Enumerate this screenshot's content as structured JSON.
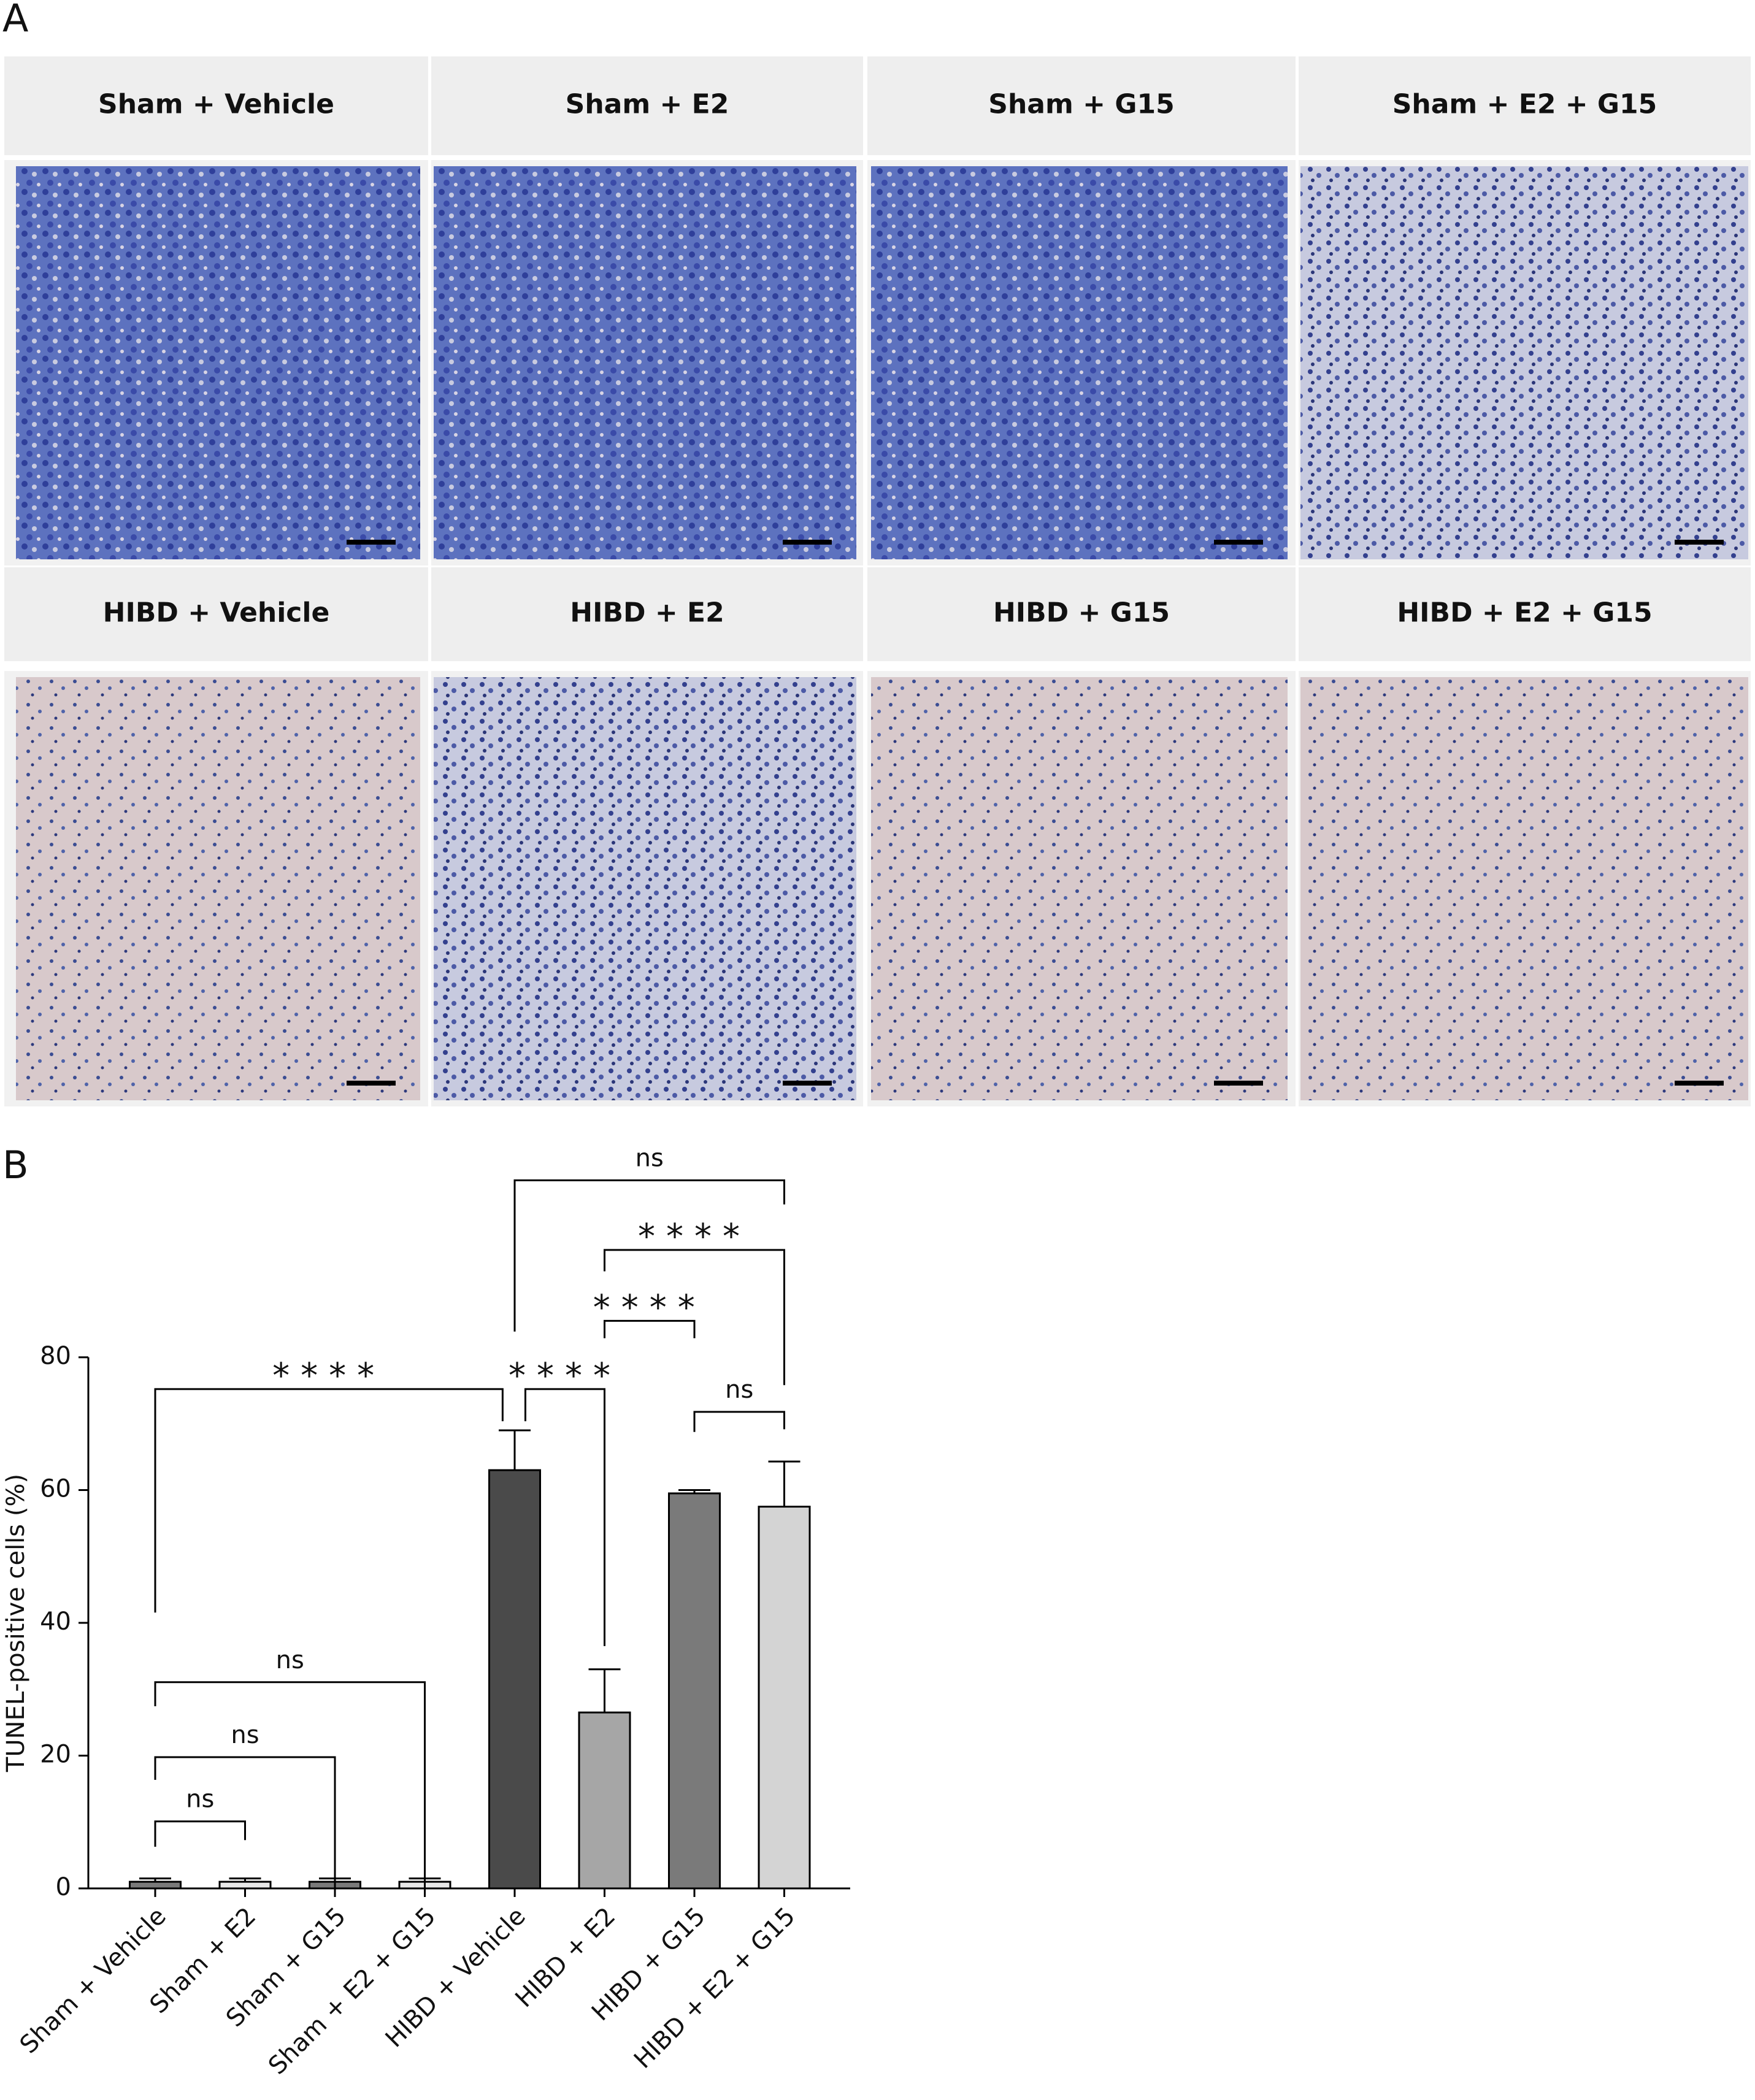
{
  "panel_a": {
    "label": "A",
    "titles": [
      "Sham + Vehicle",
      "Sham + E2",
      "Sham + G15",
      "Sham + E2 + G15",
      "HIBD + Vehicle",
      "HIBD + E2",
      "HIBD + G15",
      "HIBD + E2 + G15"
    ]
  },
  "chart_data": {
    "type": "bar",
    "label": "B",
    "ylabel": "TUNEL-positive cells (%)",
    "categories": [
      "Sham + Vehicle",
      "Sham + E2",
      "Sham + G15",
      "Sham + E2 + G15",
      "HIBD + Vehicle",
      "HIBD + E2",
      "HIBD + G15",
      "HIBD + E2 + G15"
    ],
    "values": [
      1,
      1,
      1,
      1,
      63,
      26.5,
      59.5,
      57.5
    ],
    "errors": [
      0.5,
      0.5,
      0.5,
      0.5,
      6,
      6.5,
      0.5,
      6.8
    ],
    "colors": [
      "#7a7a7a",
      "#e8e8e8",
      "#7a7a7a",
      "#e8e8e8",
      "#4a4a4a",
      "#a6a6a6",
      "#7a7a7a",
      "#d4d4d4"
    ],
    "ylim": [
      0,
      80
    ],
    "yticks": [
      0,
      20,
      40,
      60,
      80
    ],
    "annotations": [
      {
        "text": "ns",
        "between": [
          "Sham + Vehicle",
          "Sham + E2"
        ]
      },
      {
        "text": "ns",
        "between": [
          "Sham + Vehicle",
          "Sham + G15"
        ]
      },
      {
        "text": "ns",
        "between": [
          "Sham + Vehicle",
          "Sham + E2 + G15"
        ]
      },
      {
        "text": "****",
        "between": [
          "Sham + Vehicle",
          "HIBD + Vehicle"
        ]
      },
      {
        "text": "****",
        "between": [
          "HIBD + Vehicle",
          "HIBD + E2"
        ]
      },
      {
        "text": "****",
        "between": [
          "HIBD + E2",
          "HIBD + G15"
        ]
      },
      {
        "text": "ns",
        "between": [
          "HIBD + G15",
          "HIBD + E2 + G15"
        ]
      },
      {
        "text": "****",
        "between": [
          "HIBD + E2",
          "HIBD + E2 + G15"
        ]
      },
      {
        "text": "ns",
        "between": [
          "HIBD + Vehicle",
          "HIBD + E2 + G15"
        ]
      }
    ]
  }
}
